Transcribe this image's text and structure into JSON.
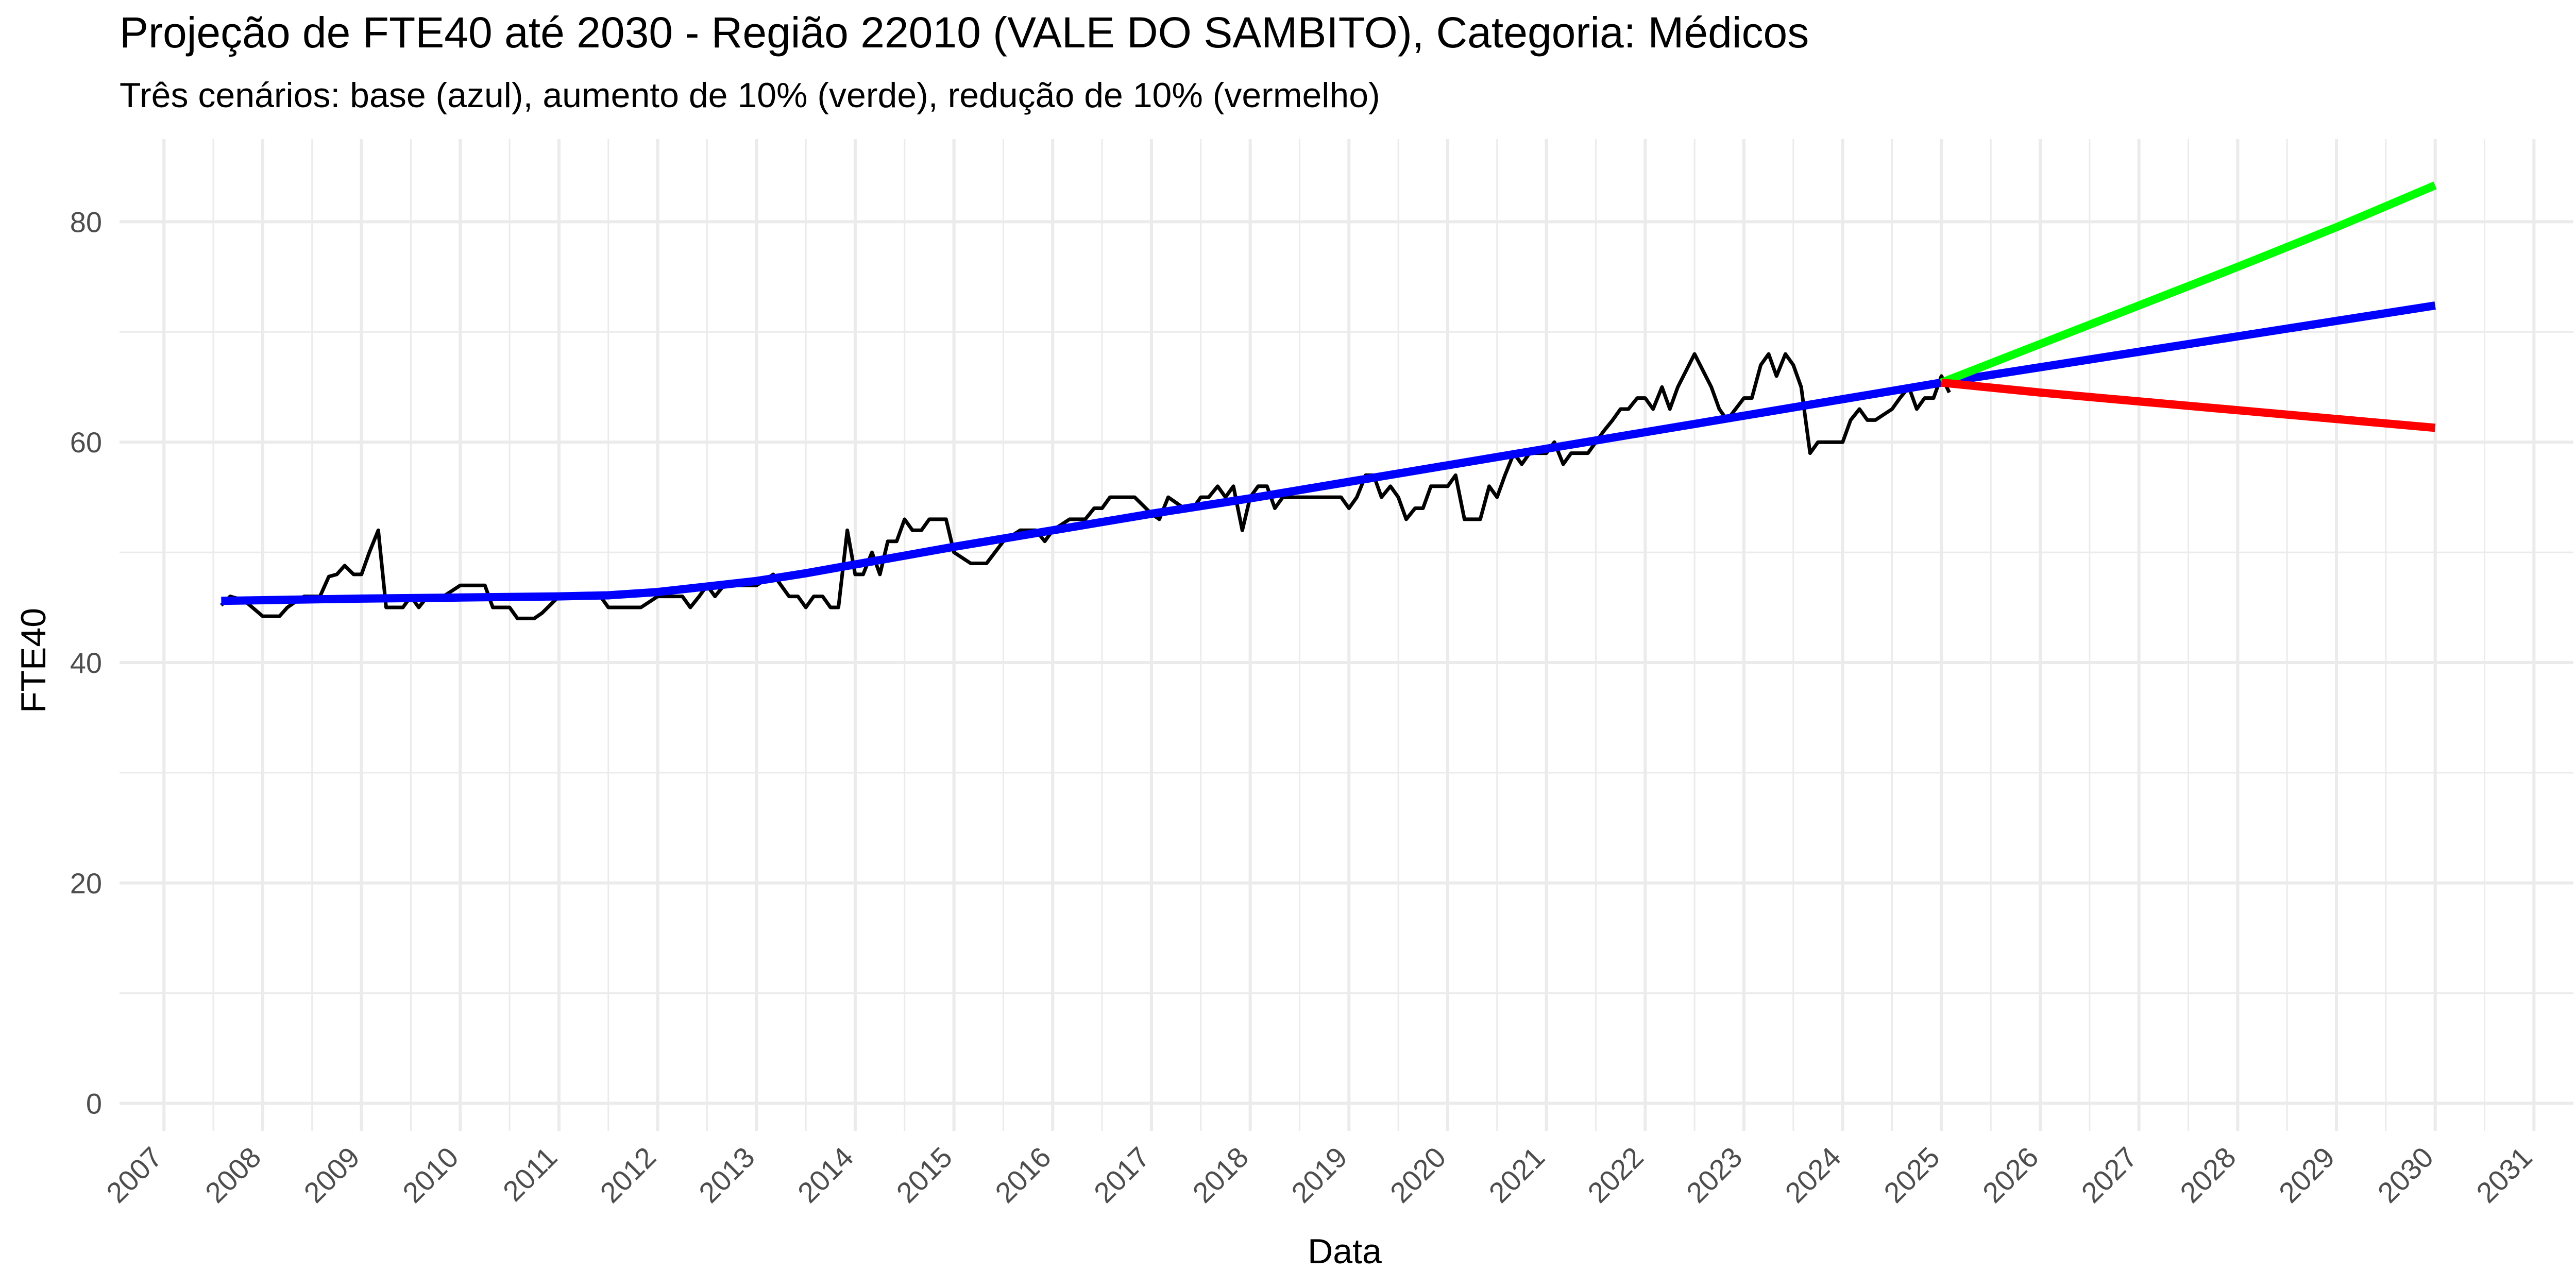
{
  "chart_data": {
    "type": "line",
    "title": "Projeção de FTE40 até 2030 - Região 22010 (VALE DO SAMBITO), Categoria: Médicos",
    "subtitle": "Três cenários: base (azul), aumento de 10% (verde), redução de 10% (vermelho)",
    "xlabel": "Data",
    "ylabel": "FTE40",
    "xlim": [
      2006.55,
      2031.4
    ],
    "ylim": [
      -2.5,
      87.5
    ],
    "x_ticks": [
      2007,
      2008,
      2009,
      2010,
      2011,
      2012,
      2013,
      2014,
      2015,
      2016,
      2017,
      2018,
      2019,
      2020,
      2021,
      2022,
      2023,
      2024,
      2025,
      2026,
      2027,
      2028,
      2029,
      2030,
      2031
    ],
    "y_ticks": [
      0,
      20,
      40,
      60,
      80
    ],
    "grid": true,
    "legend": "none",
    "colors": {
      "observed": "#000000",
      "base": "#0000ff",
      "increase": "#00ff00",
      "decrease": "#ff0000",
      "grid": "#ebebeb"
    },
    "series": [
      {
        "color": "#000000",
        "x": [
          2007.58,
          2007.67,
          2007.75,
          2007.83,
          2008.0,
          2008.17,
          2008.25,
          2008.33,
          2008.42,
          2008.5,
          2008.58,
          2008.67,
          2008.75,
          2008.83,
          2008.92,
          2009.0,
          2009.08,
          2009.17,
          2009.25,
          2009.33,
          2009.42,
          2009.5,
          2009.58,
          2009.67,
          2009.75,
          2009.83,
          2010.0,
          2010.17,
          2010.25,
          2010.33,
          2010.42,
          2010.5,
          2010.58,
          2010.67,
          2010.75,
          2010.83,
          2011.0,
          2011.17,
          2011.25,
          2011.42,
          2011.5,
          2011.58,
          2011.67,
          2011.75,
          2011.83,
          2012.0,
          2012.17,
          2012.25,
          2012.33,
          2012.42,
          2012.5,
          2012.58,
          2012.67,
          2012.75,
          2012.83,
          2013.0,
          2013.17,
          2013.25,
          2013.33,
          2013.42,
          2013.5,
          2013.58,
          2013.67,
          2013.75,
          2013.83,
          2013.92,
          2014.0,
          2014.08,
          2014.17,
          2014.25,
          2014.33,
          2014.42,
          2014.5,
          2014.58,
          2014.67,
          2014.75,
          2014.83,
          2014.92,
          2015.0,
          2015.17,
          2015.33,
          2015.5,
          2015.67,
          2015.75,
          2015.83,
          2015.92,
          2016.0,
          2016.17,
          2016.33,
          2016.42,
          2016.5,
          2016.58,
          2016.67,
          2016.75,
          2016.83,
          2017.0,
          2017.08,
          2017.17,
          2017.33,
          2017.42,
          2017.5,
          2017.58,
          2017.67,
          2017.75,
          2017.83,
          2017.92,
          2018.0,
          2018.08,
          2018.17,
          2018.25,
          2018.33,
          2018.42,
          2018.5,
          2018.67,
          2018.83,
          2018.92,
          2019.0,
          2019.08,
          2019.17,
          2019.25,
          2019.33,
          2019.42,
          2019.5,
          2019.58,
          2019.67,
          2019.75,
          2019.83,
          2019.92,
          2020.0,
          2020.08,
          2020.17,
          2020.33,
          2020.42,
          2020.5,
          2020.58,
          2020.67,
          2020.75,
          2020.83,
          2020.92,
          2021.0,
          2021.08,
          2021.17,
          2021.25,
          2021.33,
          2021.42,
          2021.5,
          2021.58,
          2021.67,
          2021.75,
          2021.83,
          2021.92,
          2022.0,
          2022.08,
          2022.17,
          2022.25,
          2022.33,
          2022.5,
          2022.67,
          2022.75,
          2022.83,
          2023.0,
          2023.08,
          2023.17,
          2023.25,
          2023.33,
          2023.42,
          2023.5,
          2023.58,
          2023.67,
          2023.75,
          2023.83,
          2024.0,
          2024.08,
          2024.17,
          2024.25,
          2024.33,
          2024.5,
          2024.58,
          2024.67,
          2024.75,
          2024.83,
          2024.92,
          2025.0,
          2025.08
        ],
        "values": [
          45.2,
          46.0,
          45.8,
          45.5,
          44.2,
          44.2,
          45.0,
          45.5,
          46.0,
          46.0,
          46.0,
          47.8,
          48.0,
          48.8,
          48.0,
          48.0,
          50.0,
          52.0,
          45.0,
          45.0,
          45.0,
          46.0,
          45.0,
          46.0,
          46.0,
          46.0,
          47.0,
          47.0,
          47.0,
          45.0,
          45.0,
          45.0,
          44.0,
          44.0,
          44.0,
          44.5,
          46.0,
          46.0,
          46.0,
          46.0,
          45.0,
          45.0,
          45.0,
          45.0,
          45.0,
          46.0,
          46.0,
          46.0,
          45.0,
          46.0,
          47.0,
          46.0,
          47.0,
          47.0,
          47.0,
          47.0,
          48.0,
          47.0,
          46.0,
          46.0,
          45.0,
          46.0,
          46.0,
          45.0,
          45.0,
          52.0,
          48.0,
          48.0,
          50.0,
          48.0,
          51.0,
          51.0,
          53.0,
          52.0,
          52.0,
          53.0,
          53.0,
          53.0,
          50.0,
          49.0,
          49.0,
          51.0,
          52.0,
          52.0,
          52.0,
          51.0,
          52.0,
          53.0,
          53.0,
          54.0,
          54.0,
          55.0,
          55.0,
          55.0,
          55.0,
          53.5,
          53.0,
          55.0,
          54.0,
          54.0,
          55.0,
          55.0,
          56.0,
          55.0,
          56.0,
          52.0,
          55.0,
          56.0,
          56.0,
          54.0,
          55.0,
          55.0,
          55.0,
          55.0,
          55.0,
          55.0,
          54.0,
          55.0,
          57.0,
          57.0,
          55.0,
          56.0,
          55.0,
          53.0,
          54.0,
          54.0,
          56.0,
          56.0,
          56.0,
          57.0,
          53.0,
          53.0,
          56.0,
          55.0,
          57.0,
          59.0,
          58.0,
          59.0,
          59.0,
          59.0,
          60.0,
          58.0,
          59.0,
          59.0,
          59.0,
          60.0,
          61.0,
          62.0,
          63.0,
          63.0,
          64.0,
          64.0,
          63.0,
          65.0,
          63.0,
          65.0,
          68.0,
          65.0,
          63.0,
          62.0,
          64.0,
          64.0,
          67.0,
          68.0,
          66.0,
          68.0,
          67.0,
          65.0,
          59.0,
          60.0,
          60.0,
          60.0,
          62.0,
          63.0,
          62.0,
          62.0,
          63.0,
          64.0,
          65.0,
          63.0,
          64.0,
          64.0,
          66.0,
          64.5
        ]
      },
      {
        "color": "#0000ff",
        "x": [
          2007.58,
          2009.0,
          2010.0,
          2011.0,
          2011.5,
          2012.0,
          2012.5,
          2013.0,
          2013.5,
          2014.0,
          2015.0,
          2016.0,
          2017.0,
          2018.0,
          2019.0,
          2020.0,
          2021.0,
          2022.0,
          2023.0,
          2024.0,
          2025.0,
          2026.0,
          2027.0,
          2028.0,
          2029.0,
          2030.0
        ],
        "values": [
          45.6,
          45.8,
          45.9,
          46.0,
          46.1,
          46.4,
          46.9,
          47.4,
          48.1,
          48.9,
          50.5,
          52.0,
          53.5,
          54.9,
          56.4,
          57.9,
          59.4,
          60.9,
          62.4,
          63.9,
          65.4,
          66.8,
          68.2,
          69.6,
          71.0,
          72.4
        ]
      },
      {
        "color": "#00ff00",
        "x": [
          2025.0,
          2026.0,
          2027.0,
          2028.0,
          2029.0,
          2030.0
        ],
        "values": [
          65.4,
          68.9,
          72.4,
          75.9,
          79.5,
          83.3
        ]
      },
      {
        "color": "#ff0000",
        "x": [
          2025.0,
          2026.0,
          2027.0,
          2028.0,
          2029.0,
          2030.0
        ],
        "values": [
          65.4,
          64.5,
          63.7,
          62.9,
          62.1,
          61.3
        ]
      }
    ]
  }
}
